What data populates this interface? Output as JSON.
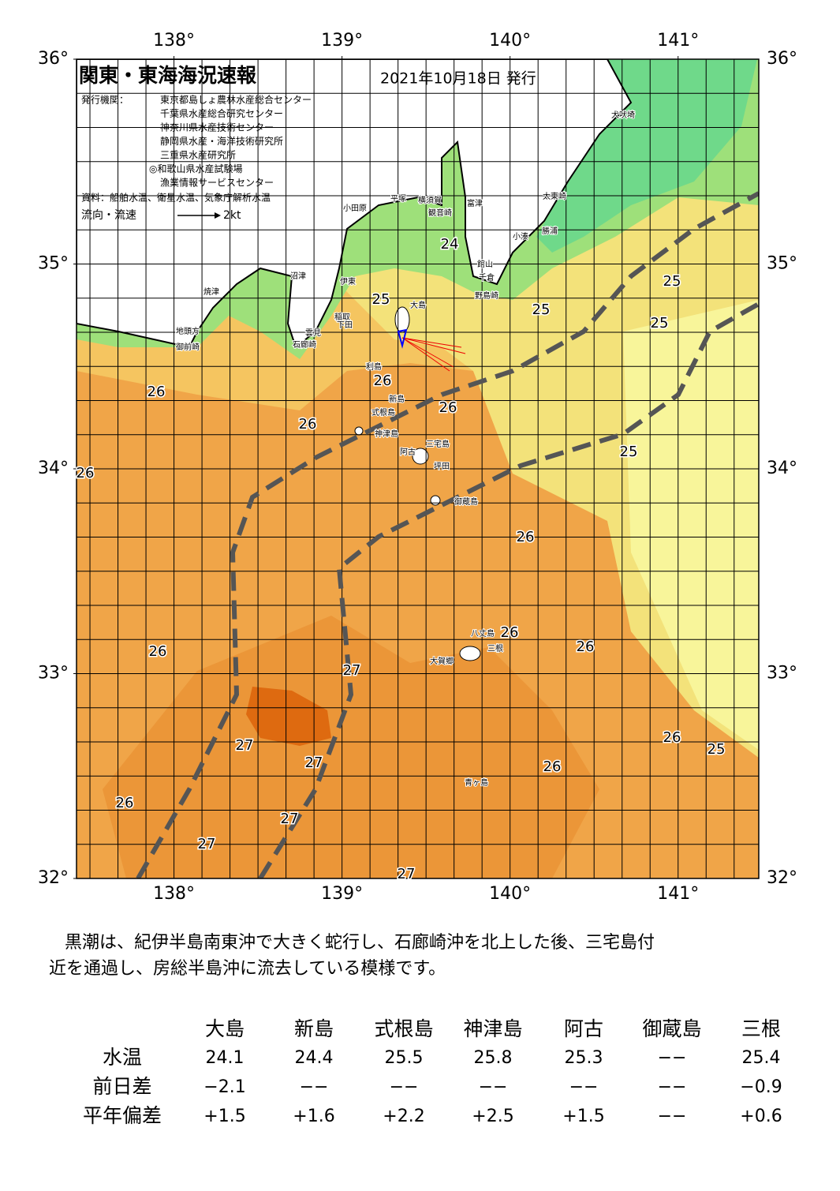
{
  "header": {
    "title": "関東・東海海況速報",
    "date": "2021年10月18日 発行",
    "issuer_label": "発行機関：",
    "issuers": [
      "東京都島しょ農林水産総合センター",
      "千葉県水産総合研究センター",
      "神奈川県水産技術センター",
      "静岡県水産・海洋技術研究所",
      "三重県水産研究所",
      "◎和歌山県水産試験場",
      "漁業情報サービスセンター"
    ],
    "sources": "資料：船舶水温、衛星水温、気象庁解析水温",
    "legend_label": "流向・流速",
    "legend_speed": "2kt"
  },
  "map": {
    "xlim": [
      137.42,
      141.48
    ],
    "ylim": [
      32,
      36
    ],
    "xticks": [
      {
        "value": 138,
        "label": "138°"
      },
      {
        "value": 139,
        "label": "139°"
      },
      {
        "value": 140,
        "label": "140°"
      },
      {
        "value": 141,
        "label": "141°"
      }
    ],
    "yticks": [
      {
        "value": 32,
        "label": "32°"
      },
      {
        "value": 33,
        "label": "33°"
      },
      {
        "value": 34,
        "label": "34°"
      },
      {
        "value": 35,
        "label": "35°"
      },
      {
        "value": 36,
        "label": "36°"
      }
    ],
    "contour_labels": [
      "25",
      "25",
      "25",
      "25",
      "24",
      "26",
      "26",
      "26",
      "26",
      "26",
      "25",
      "26",
      "26",
      "26",
      "26",
      "27",
      "27",
      "27",
      "26",
      "25",
      "26",
      "26",
      "27",
      "27",
      "27"
    ],
    "place_labels": [
      "犬吠埼",
      "太東崎",
      "勝浦",
      "小湊",
      "富津",
      "横須賀",
      "観音崎",
      "平塚",
      "小田原",
      "館山",
      "千倉",
      "野島崎",
      "沼津",
      "伊東",
      "大島",
      "稲取",
      "下田",
      "雲見",
      "石廊崎",
      "焼津",
      "地頭方",
      "御前崎",
      "利島",
      "新島",
      "式根島",
      "神津島",
      "三宅島",
      "阿古",
      "坪田",
      "御蔵島",
      "八丈島",
      "三根",
      "大賀郷",
      "青ヶ島"
    ]
  },
  "description": [
    "黒潮は、紀伊半島南東沖で大きく蛇行し、石廊崎沖を北上した後、三宅島付",
    "近を通過し、房総半島沖に流去している模様です。"
  ],
  "table": {
    "columns": [
      "大島",
      "新島",
      "式根島",
      "神津島",
      "阿古",
      "御蔵島",
      "三根"
    ],
    "rows": [
      {
        "label": "水温",
        "cells": [
          "24.1",
          "24.4",
          "25.5",
          "25.8",
          "25.3",
          "−−",
          "25.4"
        ]
      },
      {
        "label": "前日差",
        "cells": [
          "−2.1",
          "−−",
          "−−",
          "−−",
          "−−",
          "−−",
          "−0.9"
        ]
      },
      {
        "label": "平年偏差",
        "cells": [
          "+1.5",
          "+1.6",
          "+2.2",
          "+2.5",
          "+1.5",
          "−−",
          "+0.6"
        ]
      }
    ]
  }
}
